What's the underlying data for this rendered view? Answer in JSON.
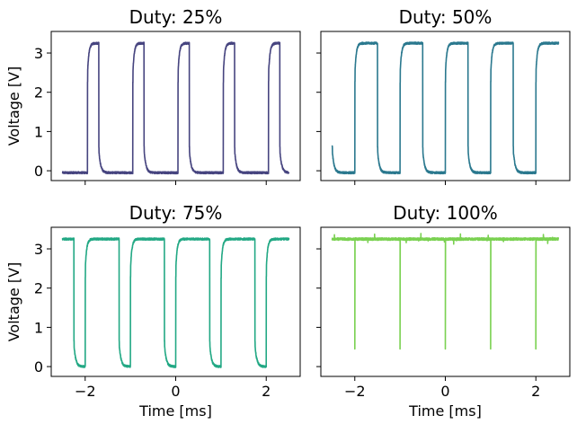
{
  "chart_data": [
    {
      "type": "line",
      "title": "Duty: 25%",
      "xlabel": "",
      "ylabel": "Voltage [V]",
      "xlim": [
        -2.75,
        2.75
      ],
      "ylim": [
        -0.25,
        3.55
      ],
      "xticks": [
        -2,
        0,
        2
      ],
      "yticks": [
        0,
        1,
        2,
        3
      ],
      "grid": false,
      "color": "#46447f",
      "signal": {
        "period_ms": 1.0,
        "high_v": 3.25,
        "low_v": -0.05,
        "t_start_ms": -2.5,
        "t_end_ms": 2.5,
        "first_rise_ms": -1.95,
        "duty": 0.25
      }
    },
    {
      "type": "line",
      "title": "Duty: 50%",
      "xlabel": "",
      "ylabel": "",
      "xlim": [
        -2.75,
        2.75
      ],
      "ylim": [
        -0.25,
        3.55
      ],
      "xticks": [
        -2,
        0,
        2
      ],
      "yticks": [
        0,
        1,
        2,
        3
      ],
      "grid": false,
      "color": "#2a788e",
      "signal": {
        "period_ms": 1.0,
        "high_v": 3.25,
        "low_v": -0.05,
        "t_start_ms": -2.5,
        "t_end_ms": 2.5,
        "first_rise_ms": -2.0,
        "duty": 0.5
      }
    },
    {
      "type": "line",
      "title": "Duty: 75%",
      "xlabel": "Time [ms]",
      "ylabel": "Voltage [V]",
      "xlim": [
        -2.75,
        2.75
      ],
      "ylim": [
        -0.25,
        3.55
      ],
      "xticks": [
        -2,
        0,
        2
      ],
      "yticks": [
        0,
        1,
        2,
        3
      ],
      "grid": false,
      "color": "#22a884",
      "signal": {
        "period_ms": 1.0,
        "high_v": 3.25,
        "low_v": 0.0,
        "t_start_ms": -2.5,
        "t_end_ms": 2.5,
        "first_rise_ms": -2.0,
        "duty": 0.75
      }
    },
    {
      "type": "line",
      "title": "Duty: 100%",
      "xlabel": "Time [ms]",
      "ylabel": "",
      "xlim": [
        -2.75,
        2.75
      ],
      "ylim": [
        -0.25,
        3.55
      ],
      "xticks": [
        -2,
        0,
        2
      ],
      "yticks": [
        0,
        1,
        2,
        3
      ],
      "grid": false,
      "color": "#7ad151",
      "signal": {
        "period_ms": 1.0,
        "high_v": 3.25,
        "low_v": 0.45,
        "t_start_ms": -2.5,
        "t_end_ms": 2.5,
        "first_rise_ms": -2.0,
        "duty": 1.0,
        "spike_times_ms": [
          -2,
          -1,
          0,
          1,
          2
        ]
      }
    }
  ]
}
